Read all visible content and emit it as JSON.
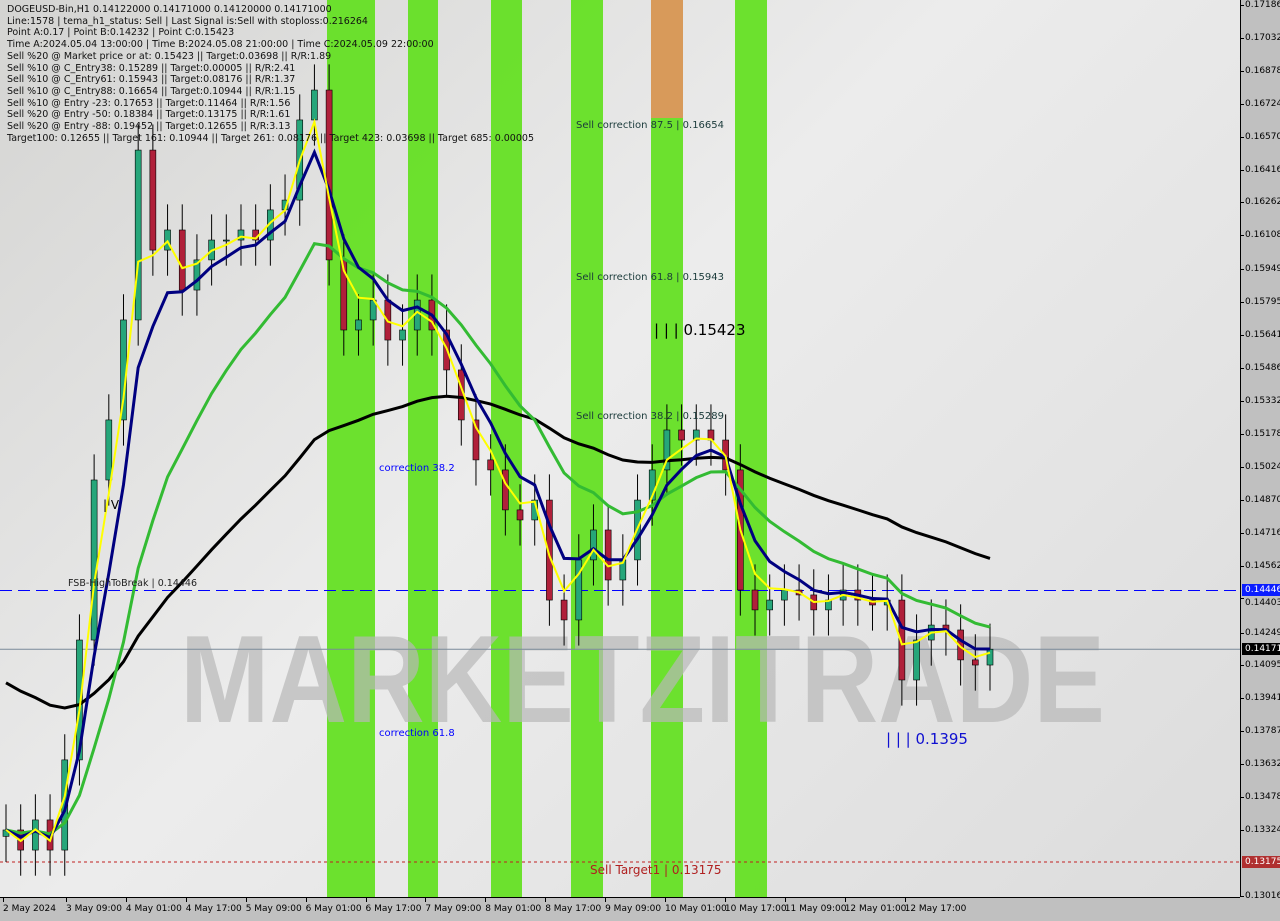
{
  "header": {
    "symbol_line": "DOGEUSD-Bin,H1  0.14122000 0.14171000 0.14120000 0.14171000",
    "lines": [
      "Line:1578 | tema_h1_status: Sell | Last Signal is:Sell with stoploss:0.216264",
      "Point A:0.17 | Point B:0.14232 | Point C:0.15423",
      "Time A:2024.05.04 13:00:00 | Time B:2024.05.08 21:00:00 | Time C:2024.05.09 22:00:00",
      "Sell %20 @ Market price or at: 0.15423 || Target:0.03698 || R/R:1.89",
      "Sell %10 @ C_Entry38: 0.15289 || Target:0.00005 || R/R:2.41",
      "Sell %10 @ C_Entry61: 0.15943 || Target:0.08176 || R/R:1.37",
      "Sell %10 @ C_Entry88: 0.16654 || Target:0.10944 || R/R:1.15",
      "Sell %10 @ Entry -23: 0.17653 || Target:0.11464 || R/R:1.56",
      "Sell %20 @ Entry -50: 0.18384 || Target:0.13175 || R/R:1.61",
      "Sell %20 @ Entry -88: 0.19452 || Target:0.12655 || R/R:3.13",
      "Target100: 0.12655 || Target 161: 0.10944 || Target 261: 0.08176 || Target 423: 0.03698 || Target 685: 0.00005"
    ]
  },
  "annotations": {
    "sell_corr_875": "Sell correction 87.5 | 0.16654",
    "sell_corr_618": "Sell correction 61.8 | 0.15943",
    "sell_corr_382": "Sell correction 38.2 | 0.15289",
    "point_c": "| | | 0.15423",
    "point_low": "| | | 0.1395",
    "correction_382": "correction 38.2",
    "correction_618": "correction 61.8",
    "fsb": "FSB-HighToBreak | 0.14446",
    "sell_target1": "Sell Target1 | 0.13175",
    "wave_iv": "| V",
    "watermark": "MARKETZITRADE"
  },
  "chart_data": {
    "type": "candlestick",
    "ylim": [
      0.13016,
      0.17186
    ],
    "y_ticks": [
      0.17186,
      0.17032,
      0.16878,
      0.16724,
      0.1657,
      0.16416,
      0.16262,
      0.16108,
      0.15949,
      0.15795,
      0.15641,
      0.15486,
      0.15332,
      0.15178,
      0.15024,
      0.1487,
      0.14716,
      0.14562,
      0.14403,
      0.14249,
      0.14095,
      0.13941,
      0.13787,
      0.13632,
      0.13478,
      0.13324,
      0.13016
    ],
    "x_ticks": [
      "2 May 2024",
      "3 May 09:00",
      "4 May 01:00",
      "4 May 17:00",
      "5 May 09:00",
      "6 May 01:00",
      "6 May 17:00",
      "7 May 09:00",
      "8 May 01:00",
      "8 May 17:00",
      "9 May 09:00",
      "10 May 01:00",
      "10 May 17:00",
      "11 May 09:00",
      "12 May 01:00",
      "12 May 17:00"
    ],
    "closes": [
      0.13325,
      0.13231,
      0.13372,
      0.13231,
      0.13653,
      0.14214,
      0.14963,
      0.15244,
      0.15712,
      0.16507,
      0.16039,
      0.16133,
      0.15852,
      0.15993,
      0.16086,
      0.16086,
      0.16133,
      0.16086,
      0.16227,
      0.16273,
      0.16648,
      0.16788,
      0.15993,
      0.15665,
      0.15712,
      0.15805,
      0.15618,
      0.15665,
      0.15805,
      0.15665,
      0.15478,
      0.15244,
      0.15057,
      0.1501,
      0.14823,
      0.14776,
      0.14869,
      0.14401,
      0.14308,
      0.14589,
      0.14729,
      0.14495,
      0.14589,
      0.14869,
      0.1501,
      0.15197,
      0.1515,
      0.15197,
      0.1515,
      0.1501,
      0.14448,
      0.14355,
      0.14401,
      0.14448,
      0.14425,
      0.14355,
      0.14401,
      0.14448,
      0.14401,
      0.14378,
      0.14401,
      0.14027,
      0.14214,
      0.14284,
      0.14261,
      0.14121,
      0.14097,
      0.14171
    ],
    "levels": {
      "fsb_high_to_break": 0.14446,
      "current_price": 0.14171,
      "sell_target1": 0.13175
    },
    "colors": {
      "bull": "#26a67a",
      "bear": "#b0203a",
      "ma_fast": "#ffff00",
      "ma_mid": "#000080",
      "ma_slow": "#33bb33",
      "ma_long": "#000000",
      "band": "#5ee01a",
      "fsb": "#0000ff",
      "target": "#c02020"
    }
  }
}
